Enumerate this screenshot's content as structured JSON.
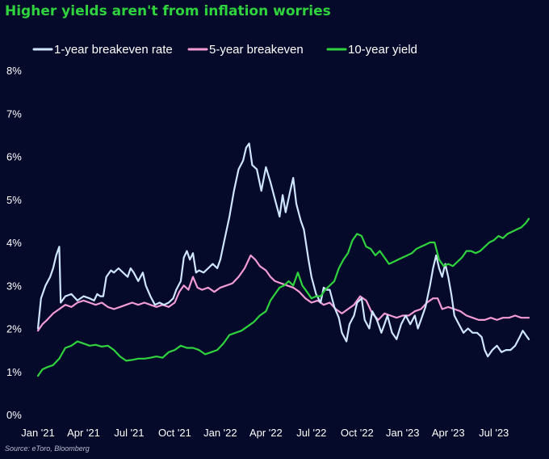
{
  "chart_data": {
    "type": "line",
    "title": "Higher yields aren't from inflation worries",
    "source": "Source: eToro, Bloomberg",
    "xlabel": "",
    "ylabel": "",
    "ylim": [
      0,
      8
    ],
    "y_ticks": [
      "0%",
      "1%",
      "2%",
      "3%",
      "4%",
      "5%",
      "6%",
      "7%",
      "8%"
    ],
    "x_range": [
      0,
      32.3
    ],
    "x_ticks": [
      {
        "label": "Jan '21",
        "x": 0
      },
      {
        "label": "Apr '21",
        "x": 3
      },
      {
        "label": "Jul '21",
        "x": 6
      },
      {
        "label": "Oct '21",
        "x": 9
      },
      {
        "label": "Jan '22",
        "x": 12
      },
      {
        "label": "Apr '22",
        "x": 15
      },
      {
        "label": "Jul '22",
        "x": 18
      },
      {
        "label": "Oct '22",
        "x": 21
      },
      {
        "label": "Jan '23",
        "x": 24
      },
      {
        "label": "Apr '23",
        "x": 27
      },
      {
        "label": "Jul '23",
        "x": 30
      }
    ],
    "grid": false,
    "legend_position": "top",
    "series": [
      {
        "name": "1-year breakeven rate",
        "color": "#cfe6ff",
        "points": [
          [
            0,
            2.0
          ],
          [
            0.2,
            2.7
          ],
          [
            0.5,
            3.0
          ],
          [
            0.8,
            3.2
          ],
          [
            1.0,
            3.4
          ],
          [
            1.2,
            3.7
          ],
          [
            1.4,
            3.9
          ],
          [
            1.5,
            2.6
          ],
          [
            1.8,
            2.75
          ],
          [
            2.2,
            2.8
          ],
          [
            2.6,
            2.65
          ],
          [
            3.0,
            2.75
          ],
          [
            3.4,
            2.7
          ],
          [
            3.7,
            2.65
          ],
          [
            3.9,
            2.8
          ],
          [
            4.1,
            2.75
          ],
          [
            4.3,
            2.75
          ],
          [
            4.5,
            3.2
          ],
          [
            4.8,
            3.35
          ],
          [
            5.0,
            3.3
          ],
          [
            5.3,
            3.4
          ],
          [
            5.6,
            3.3
          ],
          [
            5.9,
            3.2
          ],
          [
            6.1,
            3.4
          ],
          [
            6.3,
            3.3
          ],
          [
            6.6,
            3.1
          ],
          [
            6.9,
            3.3
          ],
          [
            7.1,
            3.0
          ],
          [
            7.4,
            2.75
          ],
          [
            7.7,
            2.55
          ],
          [
            8.0,
            2.6
          ],
          [
            8.3,
            2.55
          ],
          [
            8.6,
            2.6
          ],
          [
            8.9,
            2.7
          ],
          [
            9.1,
            2.9
          ],
          [
            9.4,
            3.1
          ],
          [
            9.6,
            3.65
          ],
          [
            9.8,
            3.8
          ],
          [
            10.0,
            3.6
          ],
          [
            10.2,
            3.75
          ],
          [
            10.4,
            3.3
          ],
          [
            10.6,
            3.35
          ],
          [
            10.9,
            3.3
          ],
          [
            11.2,
            3.4
          ],
          [
            11.5,
            3.5
          ],
          [
            11.8,
            3.4
          ],
          [
            12.0,
            3.6
          ],
          [
            12.3,
            4.1
          ],
          [
            12.6,
            4.6
          ],
          [
            12.9,
            5.2
          ],
          [
            13.2,
            5.7
          ],
          [
            13.5,
            5.9
          ],
          [
            13.7,
            6.2
          ],
          [
            13.9,
            6.3
          ],
          [
            14.1,
            5.8
          ],
          [
            14.4,
            5.7
          ],
          [
            14.7,
            5.2
          ],
          [
            15.0,
            5.75
          ],
          [
            15.3,
            5.4
          ],
          [
            15.6,
            5.0
          ],
          [
            15.9,
            4.6
          ],
          [
            16.1,
            5.1
          ],
          [
            16.3,
            4.7
          ],
          [
            16.6,
            5.2
          ],
          [
            16.8,
            5.5
          ],
          [
            17.0,
            4.9
          ],
          [
            17.3,
            4.5
          ],
          [
            17.5,
            4.3
          ],
          [
            17.8,
            3.6
          ],
          [
            18.0,
            3.2
          ],
          [
            18.3,
            2.8
          ],
          [
            18.6,
            2.6
          ],
          [
            18.8,
            2.95
          ],
          [
            19.0,
            2.9
          ],
          [
            19.2,
            2.9
          ],
          [
            19.5,
            2.5
          ],
          [
            19.8,
            2.25
          ],
          [
            20.0,
            1.9
          ],
          [
            20.3,
            1.7
          ],
          [
            20.5,
            2.1
          ],
          [
            20.8,
            2.3
          ],
          [
            21.0,
            2.6
          ],
          [
            21.3,
            2.7
          ],
          [
            21.5,
            2.2
          ],
          [
            21.8,
            2.0
          ],
          [
            22.0,
            2.4
          ],
          [
            22.3,
            2.2
          ],
          [
            22.6,
            1.9
          ],
          [
            22.8,
            2.1
          ],
          [
            23.0,
            2.3
          ],
          [
            23.3,
            1.9
          ],
          [
            23.6,
            1.75
          ],
          [
            23.9,
            2.1
          ],
          [
            24.2,
            2.3
          ],
          [
            24.5,
            2.1
          ],
          [
            24.8,
            2.3
          ],
          [
            25.0,
            2.0
          ],
          [
            25.2,
            2.2
          ],
          [
            25.5,
            2.5
          ],
          [
            25.8,
            3.0
          ],
          [
            26.0,
            3.4
          ],
          [
            26.2,
            3.7
          ],
          [
            26.4,
            3.4
          ],
          [
            26.6,
            3.2
          ],
          [
            26.8,
            3.5
          ],
          [
            27.0,
            3.2
          ],
          [
            27.2,
            2.8
          ],
          [
            27.4,
            2.3
          ],
          [
            27.7,
            2.1
          ],
          [
            28.0,
            1.9
          ],
          [
            28.3,
            2.0
          ],
          [
            28.6,
            1.9
          ],
          [
            28.9,
            1.9
          ],
          [
            29.2,
            1.8
          ],
          [
            29.4,
            1.5
          ],
          [
            29.6,
            1.35
          ],
          [
            29.9,
            1.5
          ],
          [
            30.2,
            1.6
          ],
          [
            30.5,
            1.45
          ],
          [
            30.8,
            1.5
          ],
          [
            31.1,
            1.5
          ],
          [
            31.4,
            1.6
          ],
          [
            31.7,
            1.8
          ],
          [
            31.9,
            1.95
          ],
          [
            32.1,
            1.85
          ],
          [
            32.3,
            1.75
          ]
        ]
      },
      {
        "name": "5-year breakeven",
        "color": "#f29bd4",
        "points": [
          [
            0,
            1.95
          ],
          [
            0.3,
            2.1
          ],
          [
            0.6,
            2.2
          ],
          [
            1.0,
            2.35
          ],
          [
            1.4,
            2.45
          ],
          [
            1.8,
            2.55
          ],
          [
            2.2,
            2.5
          ],
          [
            2.6,
            2.6
          ],
          [
            3.0,
            2.65
          ],
          [
            3.4,
            2.6
          ],
          [
            3.8,
            2.55
          ],
          [
            4.2,
            2.6
          ],
          [
            4.6,
            2.5
          ],
          [
            5.0,
            2.45
          ],
          [
            5.4,
            2.5
          ],
          [
            5.8,
            2.55
          ],
          [
            6.2,
            2.6
          ],
          [
            6.6,
            2.55
          ],
          [
            7.0,
            2.6
          ],
          [
            7.4,
            2.55
          ],
          [
            7.8,
            2.5
          ],
          [
            8.2,
            2.55
          ],
          [
            8.6,
            2.5
          ],
          [
            9.0,
            2.6
          ],
          [
            9.3,
            2.85
          ],
          [
            9.6,
            3.0
          ],
          [
            9.9,
            2.9
          ],
          [
            10.2,
            3.2
          ],
          [
            10.5,
            2.95
          ],
          [
            10.8,
            2.9
          ],
          [
            11.2,
            2.95
          ],
          [
            11.6,
            2.85
          ],
          [
            12.0,
            2.95
          ],
          [
            12.4,
            3.0
          ],
          [
            12.8,
            3.05
          ],
          [
            13.2,
            3.2
          ],
          [
            13.6,
            3.4
          ],
          [
            14.0,
            3.7
          ],
          [
            14.3,
            3.6
          ],
          [
            14.6,
            3.45
          ],
          [
            15.0,
            3.35
          ],
          [
            15.3,
            3.2
          ],
          [
            15.6,
            3.1
          ],
          [
            16.0,
            3.05
          ],
          [
            16.4,
            3.0
          ],
          [
            16.8,
            2.95
          ],
          [
            17.2,
            2.85
          ],
          [
            17.6,
            2.7
          ],
          [
            18.0,
            2.6
          ],
          [
            18.4,
            2.65
          ],
          [
            18.8,
            2.55
          ],
          [
            19.2,
            2.6
          ],
          [
            19.6,
            2.45
          ],
          [
            20.0,
            2.35
          ],
          [
            20.4,
            2.45
          ],
          [
            20.8,
            2.55
          ],
          [
            21.2,
            2.75
          ],
          [
            21.6,
            2.65
          ],
          [
            22.0,
            2.35
          ],
          [
            22.4,
            2.2
          ],
          [
            22.8,
            2.35
          ],
          [
            23.2,
            2.3
          ],
          [
            23.6,
            2.25
          ],
          [
            24.0,
            2.3
          ],
          [
            24.4,
            2.3
          ],
          [
            24.8,
            2.4
          ],
          [
            25.2,
            2.45
          ],
          [
            25.6,
            2.6
          ],
          [
            26.0,
            2.7
          ],
          [
            26.3,
            2.7
          ],
          [
            26.6,
            2.45
          ],
          [
            27.0,
            2.5
          ],
          [
            27.4,
            2.45
          ],
          [
            27.8,
            2.4
          ],
          [
            28.2,
            2.3
          ],
          [
            28.6,
            2.25
          ],
          [
            29.0,
            2.2
          ],
          [
            29.4,
            2.2
          ],
          [
            29.8,
            2.25
          ],
          [
            30.2,
            2.2
          ],
          [
            30.6,
            2.25
          ],
          [
            31.0,
            2.25
          ],
          [
            31.4,
            2.3
          ],
          [
            31.8,
            2.25
          ],
          [
            32.3,
            2.25
          ]
        ]
      },
      {
        "name": "10-year yield",
        "color": "#2fd33e",
        "points": [
          [
            0,
            0.9
          ],
          [
            0.3,
            1.05
          ],
          [
            0.6,
            1.1
          ],
          [
            1.0,
            1.15
          ],
          [
            1.4,
            1.3
          ],
          [
            1.8,
            1.55
          ],
          [
            2.2,
            1.6
          ],
          [
            2.6,
            1.7
          ],
          [
            3.0,
            1.65
          ],
          [
            3.4,
            1.6
          ],
          [
            3.8,
            1.62
          ],
          [
            4.2,
            1.58
          ],
          [
            4.6,
            1.6
          ],
          [
            5.0,
            1.5
          ],
          [
            5.4,
            1.35
          ],
          [
            5.8,
            1.25
          ],
          [
            6.2,
            1.27
          ],
          [
            6.6,
            1.3
          ],
          [
            7.0,
            1.3
          ],
          [
            7.4,
            1.32
          ],
          [
            7.8,
            1.35
          ],
          [
            8.2,
            1.32
          ],
          [
            8.6,
            1.45
          ],
          [
            9.0,
            1.5
          ],
          [
            9.4,
            1.6
          ],
          [
            9.8,
            1.55
          ],
          [
            10.2,
            1.55
          ],
          [
            10.6,
            1.5
          ],
          [
            11.0,
            1.4
          ],
          [
            11.4,
            1.45
          ],
          [
            11.8,
            1.5
          ],
          [
            12.2,
            1.65
          ],
          [
            12.6,
            1.85
          ],
          [
            13.0,
            1.9
          ],
          [
            13.4,
            1.95
          ],
          [
            13.8,
            2.05
          ],
          [
            14.2,
            2.15
          ],
          [
            14.6,
            2.3
          ],
          [
            15.0,
            2.4
          ],
          [
            15.3,
            2.65
          ],
          [
            15.6,
            2.8
          ],
          [
            15.9,
            2.95
          ],
          [
            16.2,
            3.0
          ],
          [
            16.5,
            3.1
          ],
          [
            16.8,
            3.0
          ],
          [
            17.1,
            3.3
          ],
          [
            17.4,
            3.0
          ],
          [
            17.7,
            2.85
          ],
          [
            18.0,
            2.7
          ],
          [
            18.3,
            2.75
          ],
          [
            18.6,
            2.75
          ],
          [
            18.9,
            2.9
          ],
          [
            19.2,
            3.0
          ],
          [
            19.5,
            3.1
          ],
          [
            19.8,
            3.4
          ],
          [
            20.1,
            3.6
          ],
          [
            20.4,
            3.75
          ],
          [
            20.7,
            4.05
          ],
          [
            21.0,
            4.2
          ],
          [
            21.3,
            4.15
          ],
          [
            21.6,
            3.9
          ],
          [
            21.9,
            3.85
          ],
          [
            22.2,
            3.7
          ],
          [
            22.5,
            3.8
          ],
          [
            22.8,
            3.65
          ],
          [
            23.1,
            3.5
          ],
          [
            23.4,
            3.55
          ],
          [
            23.7,
            3.6
          ],
          [
            24.0,
            3.65
          ],
          [
            24.3,
            3.7
          ],
          [
            24.6,
            3.75
          ],
          [
            24.9,
            3.85
          ],
          [
            25.2,
            3.9
          ],
          [
            25.5,
            3.95
          ],
          [
            25.8,
            4.0
          ],
          [
            26.1,
            4.0
          ],
          [
            26.4,
            3.6
          ],
          [
            26.7,
            3.45
          ],
          [
            27.0,
            3.5
          ],
          [
            27.3,
            3.45
          ],
          [
            27.6,
            3.55
          ],
          [
            27.9,
            3.65
          ],
          [
            28.2,
            3.8
          ],
          [
            28.5,
            3.8
          ],
          [
            28.8,
            3.75
          ],
          [
            29.1,
            3.8
          ],
          [
            29.4,
            3.9
          ],
          [
            29.7,
            4.0
          ],
          [
            30.0,
            4.05
          ],
          [
            30.3,
            4.15
          ],
          [
            30.6,
            4.1
          ],
          [
            30.9,
            4.2
          ],
          [
            31.2,
            4.25
          ],
          [
            31.5,
            4.3
          ],
          [
            31.8,
            4.35
          ],
          [
            32.1,
            4.45
          ],
          [
            32.3,
            4.55
          ]
        ]
      }
    ]
  }
}
